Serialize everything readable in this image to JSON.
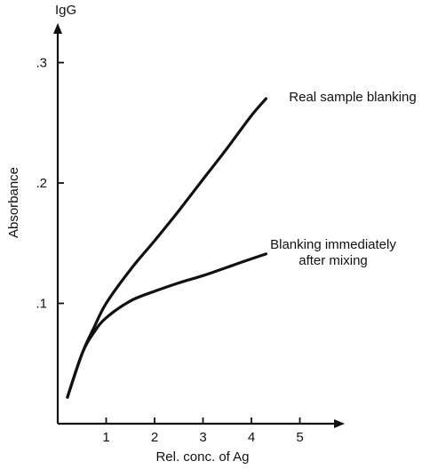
{
  "chart_data": {
    "type": "line",
    "title": "",
    "corner_label": "IgG",
    "xlabel": "Rel. conc. of Ag",
    "ylabel": "Absorbance",
    "xlim": [
      0,
      6
    ],
    "ylim": [
      0,
      0.33
    ],
    "x_ticks": [
      {
        "value": 1,
        "label": "1"
      },
      {
        "value": 2,
        "label": "2"
      },
      {
        "value": 3,
        "label": "3"
      },
      {
        "value": 4,
        "label": "4"
      },
      {
        "value": 5,
        "label": "5"
      }
    ],
    "y_ticks": [
      {
        "value": 0.1,
        "label": ".1"
      },
      {
        "value": 0.2,
        "label": ".2"
      },
      {
        "value": 0.3,
        "label": ".3"
      }
    ],
    "grid": false,
    "series": [
      {
        "label_lines": [
          "Real sample blanking"
        ],
        "points": [
          [
            0.2,
            0.022
          ],
          [
            0.5,
            0.058
          ],
          [
            0.75,
            0.08
          ],
          [
            1.0,
            0.1
          ],
          [
            1.5,
            0.128
          ],
          [
            2.0,
            0.152
          ],
          [
            2.5,
            0.177
          ],
          [
            3.0,
            0.203
          ],
          [
            3.5,
            0.229
          ],
          [
            4.0,
            0.256
          ],
          [
            4.3,
            0.27
          ]
        ]
      },
      {
        "label_lines": [
          "Blanking immediately",
          "after mixing"
        ],
        "points": [
          [
            0.2,
            0.022
          ],
          [
            0.5,
            0.058
          ],
          [
            0.75,
            0.076
          ],
          [
            1.0,
            0.088
          ],
          [
            1.5,
            0.102
          ],
          [
            2.0,
            0.11
          ],
          [
            2.5,
            0.117
          ],
          [
            3.0,
            0.123
          ],
          [
            3.5,
            0.13
          ],
          [
            4.0,
            0.137
          ],
          [
            4.3,
            0.141
          ]
        ]
      }
    ]
  }
}
